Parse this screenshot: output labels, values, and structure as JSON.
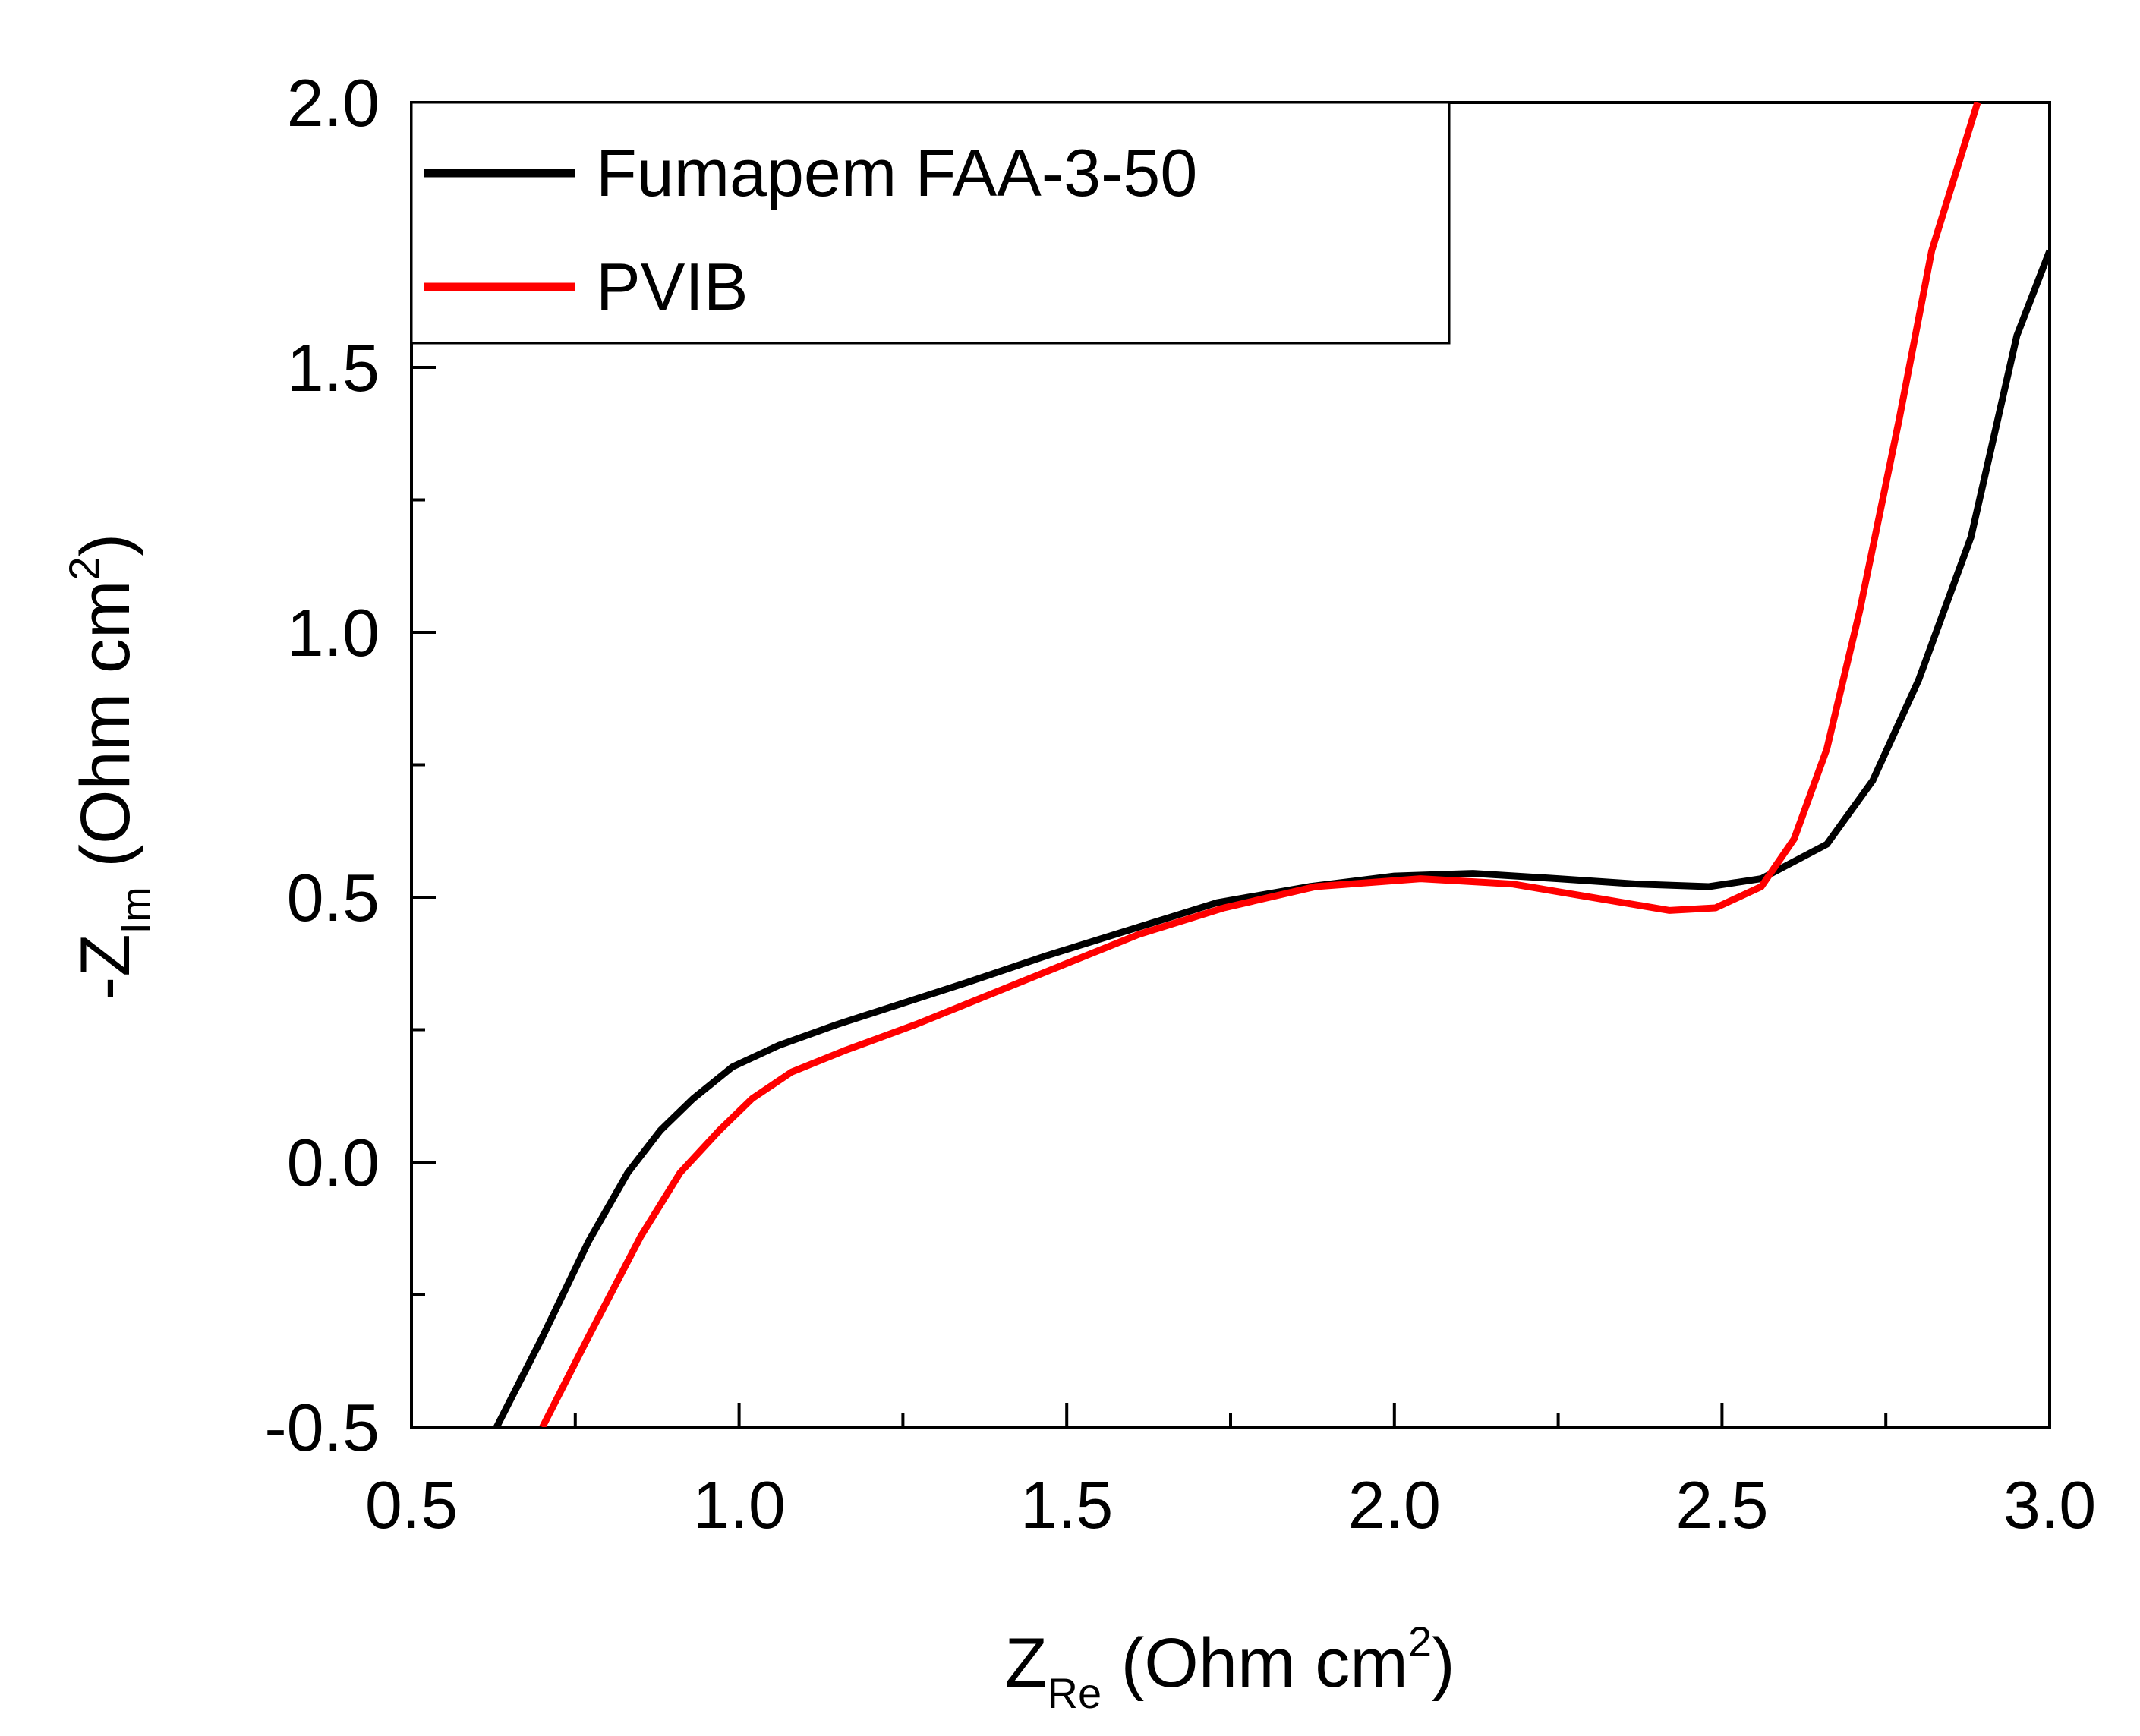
{
  "chart_data": {
    "type": "line",
    "title": "",
    "xlabel": {
      "base": "Z",
      "sub": "Re",
      "unit_before_sup": " (Ohm cm",
      "sup": "2",
      "unit_after_sup": ")"
    },
    "ylabel": {
      "prefix": "-Z",
      "sub": "Im",
      "unit_before_sup": " (Ohm cm",
      "sup": "2",
      "unit_after_sup": ")"
    },
    "xlim": [
      0.5,
      3.0
    ],
    "ylim": [
      -0.5,
      2.0
    ],
    "xticks": [
      0.5,
      1.0,
      1.5,
      2.0,
      2.5,
      3.0
    ],
    "xtick_labels": [
      "0.5",
      "1.0",
      "1.5",
      "2.0",
      "2.5",
      "3.0"
    ],
    "yticks": [
      -0.5,
      0.0,
      0.5,
      1.0,
      1.5,
      2.0
    ],
    "ytick_labels": [
      "-0.5",
      "0.0",
      "0.5",
      "1.0",
      "1.5",
      "2.0"
    ],
    "grid": false,
    "legend_position": "top-left",
    "series": [
      {
        "name": "Fumapem FAA-3-50",
        "color": "#000000",
        "points": [
          [
            0.63,
            -0.5
          ],
          [
            0.7,
            -0.33
          ],
          [
            0.77,
            -0.15
          ],
          [
            0.83,
            -0.02
          ],
          [
            0.88,
            0.06
          ],
          [
            0.93,
            0.12
          ],
          [
            0.99,
            0.18
          ],
          [
            1.06,
            0.22
          ],
          [
            1.15,
            0.26
          ],
          [
            1.25,
            0.3
          ],
          [
            1.35,
            0.34
          ],
          [
            1.47,
            0.39
          ],
          [
            1.6,
            0.44
          ],
          [
            1.73,
            0.49
          ],
          [
            1.87,
            0.52
          ],
          [
            2.0,
            0.54
          ],
          [
            2.12,
            0.545
          ],
          [
            2.25,
            0.535
          ],
          [
            2.37,
            0.525
          ],
          [
            2.48,
            0.52
          ],
          [
            2.56,
            0.535
          ],
          [
            2.66,
            0.6
          ],
          [
            2.73,
            0.72
          ],
          [
            2.8,
            0.91
          ],
          [
            2.88,
            1.18
          ],
          [
            2.95,
            1.56
          ],
          [
            3.0,
            1.72
          ]
        ]
      },
      {
        "name": "PVIB",
        "color": "#ff0000",
        "points": [
          [
            0.7,
            -0.5
          ],
          [
            0.77,
            -0.33
          ],
          [
            0.85,
            -0.14
          ],
          [
            0.91,
            -0.02
          ],
          [
            0.97,
            0.06
          ],
          [
            1.02,
            0.12
          ],
          [
            1.08,
            0.17
          ],
          [
            1.16,
            0.21
          ],
          [
            1.27,
            0.26
          ],
          [
            1.37,
            0.31
          ],
          [
            1.49,
            0.37
          ],
          [
            1.61,
            0.43
          ],
          [
            1.74,
            0.48
          ],
          [
            1.88,
            0.52
          ],
          [
            2.04,
            0.535
          ],
          [
            2.18,
            0.525
          ],
          [
            2.3,
            0.5
          ],
          [
            2.42,
            0.475
          ],
          [
            2.49,
            0.48
          ],
          [
            2.56,
            0.52
          ],
          [
            2.61,
            0.61
          ],
          [
            2.66,
            0.78
          ],
          [
            2.71,
            1.04
          ],
          [
            2.77,
            1.4
          ],
          [
            2.82,
            1.72
          ],
          [
            2.89,
            2.0
          ]
        ]
      }
    ]
  }
}
